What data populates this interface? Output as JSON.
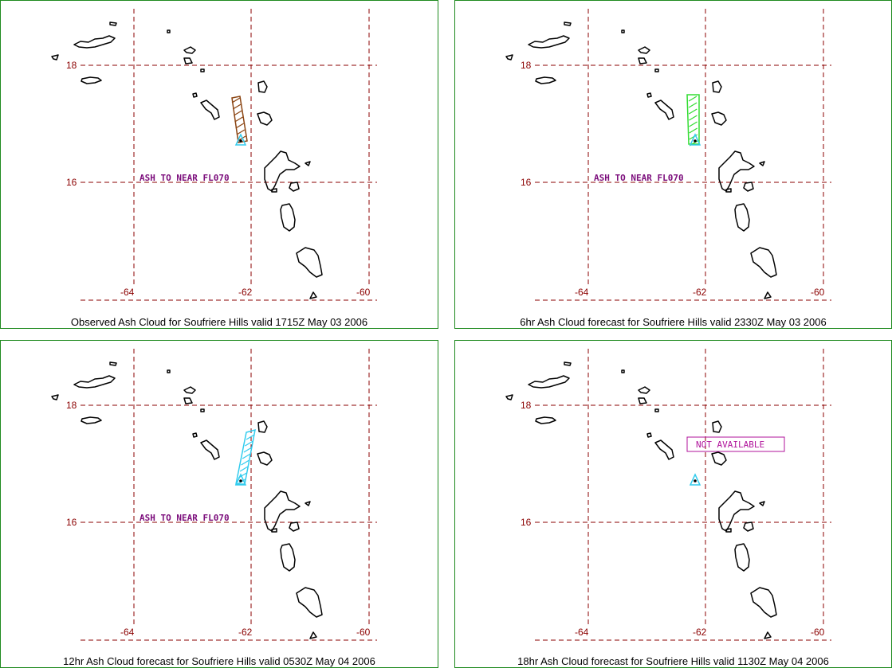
{
  "panels": [
    {
      "caption": "Observed Ash Cloud for Soufriere  Hills valid 1715Z May 03 2006",
      "lat_labels": [
        "18",
        "16"
      ],
      "lon_labels": [
        "-64",
        "-62",
        "-60"
      ],
      "ash_label": "ASH TO NEAR FL070",
      "cloud_color": "#8b4513",
      "status": ""
    },
    {
      "caption": "6hr Ash Cloud forecast for Soufriere  Hills valid 2330Z May 03 2006",
      "lat_labels": [
        "18",
        "16"
      ],
      "lon_labels": [
        "-64",
        "-62",
        "-60"
      ],
      "ash_label": "ASH TO NEAR FL070",
      "cloud_color": "#33dd33",
      "status": ""
    },
    {
      "caption": "12hr Ash Cloud forecast for Soufriere  Hills valid 0530Z May 04 2006",
      "lat_labels": [
        "18",
        "16"
      ],
      "lon_labels": [
        "-64",
        "-62",
        "-60"
      ],
      "ash_label": "ASH TO NEAR FL070",
      "cloud_color": "#33ccee",
      "status": ""
    },
    {
      "caption": "18hr Ash Cloud forecast for Soufriere  Hills valid 1130Z May 04 2006",
      "lat_labels": [
        "18",
        "16"
      ],
      "lon_labels": [
        "-64",
        "-62",
        "-60"
      ],
      "ash_label": "",
      "cloud_color": "",
      "status": "NOT AVAILABLE"
    }
  ],
  "colors": {
    "frame": "#1e8a1e",
    "grid": "#8b0000",
    "coast": "#000000",
    "volcano": "#33ccee",
    "ash_text": "#7b0c7b",
    "status_box": "#b0139b"
  }
}
